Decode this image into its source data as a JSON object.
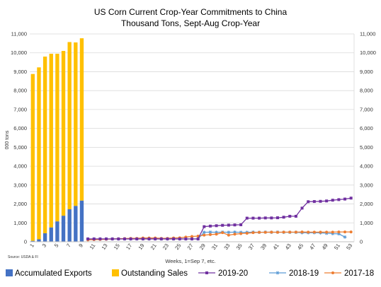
{
  "chart_data": {
    "type": "bar",
    "title": "US Corn Current Crop-Year Commitments to China",
    "subtitle": "Thousand Tons, Sept-Aug Crop-Year",
    "ylabel": "000 tons",
    "xlabel": "Weeks, 1=Sep 7, etc.",
    "source": "Source: USDA & FI",
    "ylim": [
      0,
      11000
    ],
    "yticks": [
      "0",
      "1,000",
      "2,000",
      "3,000",
      "4,000",
      "5,000",
      "6,000",
      "7,000",
      "8,000",
      "9,000",
      "10,000",
      "11,000"
    ],
    "xticks": [
      "1",
      "3",
      "5",
      "7",
      "9",
      "11",
      "13",
      "15",
      "17",
      "19",
      "21",
      "23",
      "25",
      "27",
      "29",
      "31",
      "33",
      "35",
      "37",
      "39",
      "41",
      "43",
      "45",
      "47",
      "49",
      "51",
      "53"
    ],
    "x_count": 53,
    "stacked_bars": {
      "weeks": [
        1,
        2,
        3,
        4,
        5,
        6,
        7,
        8,
        9
      ],
      "series": [
        {
          "name": "Accumulated Exports",
          "color": "#4472C4",
          "values": [
            50,
            130,
            450,
            760,
            1080,
            1380,
            1720,
            1900,
            2180
          ]
        },
        {
          "name": "Outstanding Sales",
          "color": "#FFC000",
          "values": [
            8830,
            9100,
            9350,
            9190,
            8870,
            8720,
            8850,
            8650,
            8590
          ]
        }
      ]
    },
    "line_series": [
      {
        "name": "2019-20",
        "color": "#7030A0",
        "marker": "square",
        "values": [
          null,
          null,
          null,
          null,
          null,
          null,
          null,
          null,
          null,
          150,
          150,
          150,
          150,
          150,
          150,
          150,
          150,
          150,
          150,
          150,
          150,
          150,
          150,
          150,
          150,
          150,
          150,
          150,
          800,
          830,
          850,
          870,
          880,
          890,
          900,
          1250,
          1250,
          1250,
          1260,
          1260,
          1270,
          1300,
          1350,
          1350,
          1780,
          2120,
          2130,
          2140,
          2160,
          2200,
          2230,
          2260,
          2310
        ]
      },
      {
        "name": "2018-19",
        "color": "#5B9BD5",
        "marker": "star",
        "values": [
          null,
          null,
          null,
          null,
          null,
          null,
          null,
          null,
          null,
          150,
          150,
          150,
          150,
          150,
          150,
          150,
          150,
          150,
          150,
          150,
          150,
          150,
          150,
          150,
          150,
          150,
          150,
          150,
          500,
          510,
          500,
          510,
          500,
          510,
          500,
          500,
          510,
          500,
          510,
          500,
          510,
          500,
          500,
          500,
          480,
          480,
          480,
          470,
          450,
          430,
          420,
          250,
          null
        ]
      },
      {
        "name": "2017-18",
        "color": "#ED7D31",
        "marker": "circle",
        "values": [
          null,
          null,
          null,
          null,
          null,
          null,
          null,
          null,
          null,
          100,
          110,
          120,
          130,
          150,
          160,
          170,
          180,
          180,
          200,
          200,
          200,
          180,
          180,
          200,
          210,
          250,
          280,
          300,
          350,
          380,
          400,
          480,
          350,
          400,
          430,
          450,
          480,
          500,
          500,
          510,
          500,
          510,
          510,
          510,
          520,
          510,
          510,
          510,
          510,
          510,
          520,
          520,
          520
        ]
      }
    ],
    "legend": {
      "position": "bottom"
    },
    "grid": true
  }
}
